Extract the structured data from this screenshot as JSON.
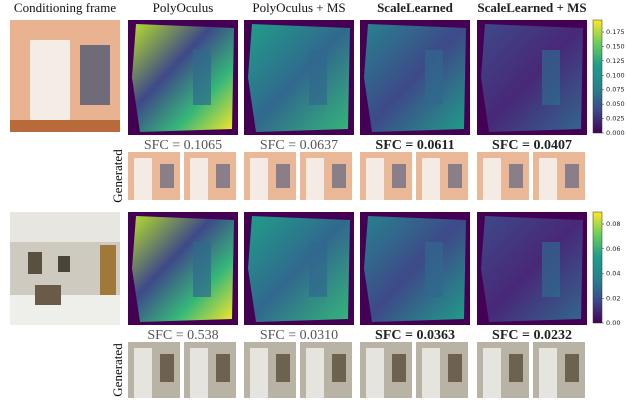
{
  "header": {
    "conditioning": "Conditioning frame",
    "columns": [
      "PolyOculus",
      "PolyOculus + MS",
      "ScaleLearned",
      "ScaleLearned + MS"
    ]
  },
  "rows": [
    {
      "sfc": [
        "SFC = 0.1065",
        "SFC = 0.0637",
        "SFC = 0.0611",
        "SFC = 0.0407"
      ],
      "generated": "Generated",
      "colorbar_ticks": [
        "0.175",
        "0.150",
        "0.125",
        "0.100",
        "0.075",
        "0.050",
        "0.025",
        "0.000"
      ]
    },
    {
      "sfc": [
        "SFC = 0.538",
        "SFC = 0.0310",
        "SFC = 0.0363",
        "SFC = 0.0232"
      ],
      "generated": "Generated",
      "colorbar_ticks": [
        "0.08",
        "0.06",
        "0.04",
        "0.02",
        "0.00"
      ]
    }
  ]
}
